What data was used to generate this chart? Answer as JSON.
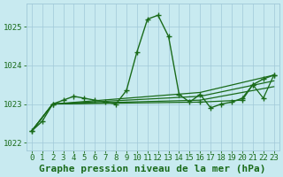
{
  "title": "Graphe pression niveau de la mer (hPa)",
  "background_color": "#c8eaf0",
  "grid_color": "#a0c8d8",
  "line_color": "#1a6b1a",
  "marker_color": "#1a6b1a",
  "xlim": [
    -0.5,
    23.5
  ],
  "ylim": [
    1021.8,
    1025.6
  ],
  "yticks": [
    1022,
    1023,
    1024,
    1025
  ],
  "xticks": [
    0,
    1,
    2,
    3,
    4,
    5,
    6,
    7,
    8,
    9,
    10,
    11,
    12,
    13,
    14,
    15,
    16,
    17,
    18,
    19,
    20,
    21,
    22,
    23
  ],
  "series": [
    {
      "x": [
        0,
        1,
        2,
        3,
        4,
        5,
        6,
        7,
        8,
        9,
        10,
        11,
        12,
        13,
        14,
        15,
        16,
        17,
        18,
        19,
        20,
        21,
        22,
        23
      ],
      "y": [
        1022.3,
        1022.55,
        1023.0,
        1023.1,
        1023.2,
        1023.15,
        1023.1,
        1023.05,
        1023.0,
        1023.35,
        1024.35,
        1025.2,
        1025.3,
        1024.75,
        1023.25,
        1023.05,
        1023.25,
        1022.9,
        1023.0,
        1023.05,
        1023.15,
        1023.5,
        1023.65,
        1023.75
      ],
      "marker": true,
      "linewidth": 1.0
    },
    {
      "x": [
        0,
        2,
        16,
        23
      ],
      "y": [
        1022.3,
        1023.0,
        1023.3,
        1023.75
      ],
      "marker": false,
      "linewidth": 0.9
    },
    {
      "x": [
        0,
        2,
        16,
        23
      ],
      "y": [
        1022.3,
        1023.0,
        1023.2,
        1023.6
      ],
      "marker": false,
      "linewidth": 0.9
    },
    {
      "x": [
        0,
        2,
        16,
        23
      ],
      "y": [
        1022.3,
        1023.0,
        1023.1,
        1023.45
      ],
      "marker": false,
      "linewidth": 0.9
    },
    {
      "x": [
        0,
        2,
        16,
        20,
        21,
        22,
        23
      ],
      "y": [
        1022.3,
        1023.0,
        1023.05,
        1023.1,
        1023.5,
        1023.15,
        1023.75
      ],
      "marker": true,
      "linewidth": 0.9
    }
  ],
  "title_color": "#1a6b1a",
  "title_fontsize": 8,
  "tick_fontsize": 6.5,
  "tick_color": "#1a6b1a"
}
